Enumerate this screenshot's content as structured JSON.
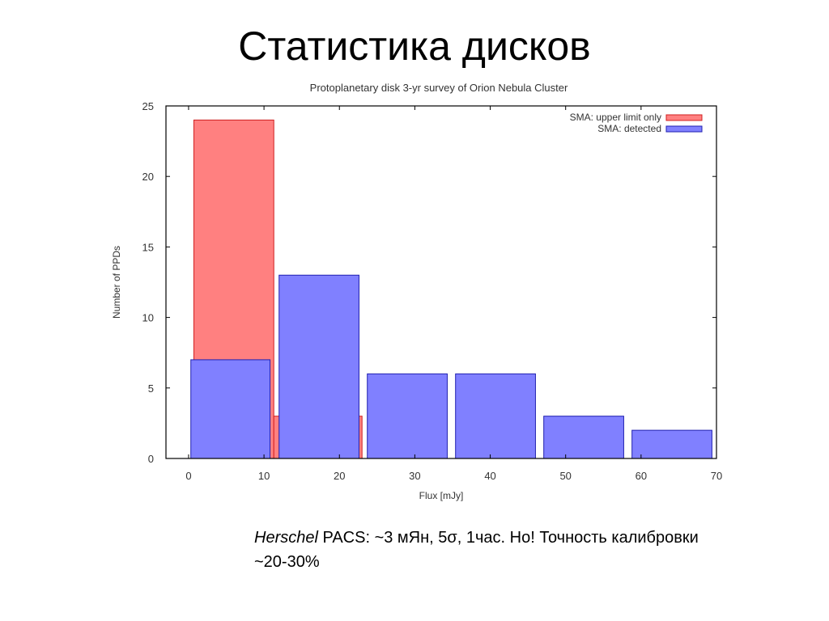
{
  "slide": {
    "title": "Статистика дисков"
  },
  "caption": {
    "italic": "Herschel",
    "text": " PACS: ~3 мЯн, 5σ, 1час. Но! Точность калибровки ~20-30%"
  },
  "chart_data": {
    "type": "bar",
    "title": "Protoplanetary disk 3-yr survey of Orion Nebula Cluster",
    "xlabel": "Flux [mJy]",
    "ylabel": "Number of PPDs",
    "xlim": [
      -3,
      70
    ],
    "ylim": [
      0,
      25
    ],
    "xticks": [
      0,
      10,
      20,
      30,
      40,
      50,
      60,
      70
    ],
    "yticks": [
      0,
      5,
      10,
      15,
      20,
      25
    ],
    "grid": false,
    "legend_position": "top-right",
    "series": [
      {
        "name": "SMA: upper limit only",
        "color": "#ff8080",
        "edge": "#d02020",
        "bins": [
          {
            "x0": 0.7,
            "x1": 11.3,
            "value": 24
          },
          {
            "x0": 11.3,
            "x1": 23.0,
            "value": 3
          }
        ]
      },
      {
        "name": "SMA: detected",
        "color": "#8080ff",
        "edge": "#2020b0",
        "bins": [
          {
            "x0": 0.3,
            "x1": 10.8,
            "value": 7
          },
          {
            "x0": 12.0,
            "x1": 22.6,
            "value": 13
          },
          {
            "x0": 23.7,
            "x1": 34.3,
            "value": 6
          },
          {
            "x0": 35.4,
            "x1": 46.0,
            "value": 6
          },
          {
            "x0": 47.1,
            "x1": 57.7,
            "value": 3
          },
          {
            "x0": 58.8,
            "x1": 69.4,
            "value": 2
          }
        ]
      }
    ]
  }
}
